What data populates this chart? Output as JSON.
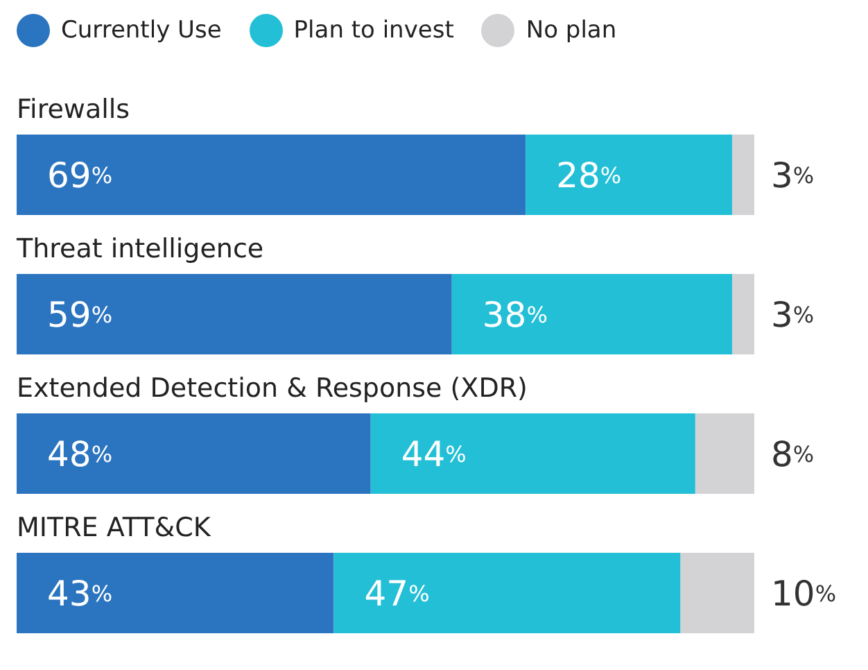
{
  "chart_data": {
    "type": "bar",
    "orientation": "horizontal",
    "stacked": true,
    "legend": "top left",
    "grid": false,
    "categories": [
      "Firewalls",
      "Threat intelligence",
      "Extended Detection & Response (XDR)",
      "MITRE ATT&CK"
    ],
    "series": [
      {
        "name": "Currently Use",
        "color": "#2b74bf",
        "values": [
          69,
          59,
          48,
          43
        ],
        "value_labels": [
          "69%",
          "59%",
          "48%",
          "43%"
        ]
      },
      {
        "name": "Plan to invest",
        "color": "#22bfd6",
        "values": [
          28,
          38,
          44,
          47
        ],
        "value_labels": [
          "28%",
          "38%",
          "44%",
          "47%"
        ]
      },
      {
        "name": "No plan",
        "color": "#d3d3d6",
        "values": [
          3,
          3,
          8,
          10
        ],
        "value_labels": [
          "3%",
          "3%",
          "8%",
          "10%"
        ]
      }
    ]
  }
}
